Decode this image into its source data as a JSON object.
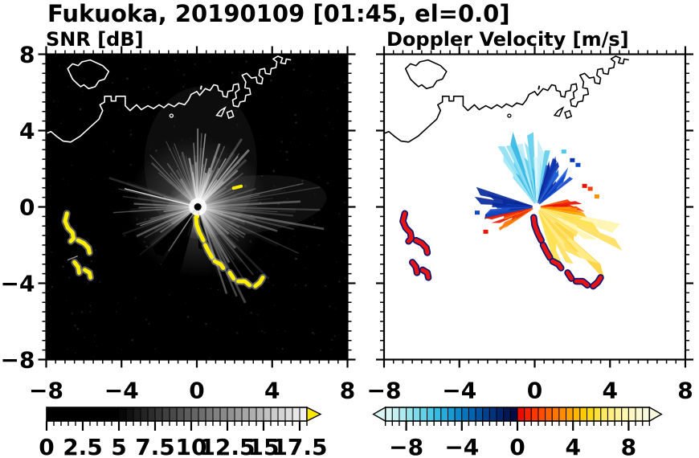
{
  "title": "Fukuoka, 20190109 [01:45, el=0.0]",
  "chart_data": [
    {
      "type": "heatmap",
      "title": "SNR [dB]",
      "xlim": [
        -8,
        8
      ],
      "ylim": [
        -8,
        8
      ],
      "xticks": [
        -8,
        -4,
        0,
        4,
        8
      ],
      "yticks": [
        8,
        4,
        0,
        -4,
        -8
      ],
      "xtick_labels": [
        "−8",
        "−4",
        "0",
        "4",
        "8"
      ],
      "ytick_labels": [
        "8",
        "4",
        "0",
        "−4",
        "−8"
      ],
      "minor_tick_step": 0.5,
      "grid": false,
      "background_color": "#000000",
      "coast_color": "#ffffff",
      "colorbar": {
        "range": [
          0,
          18
        ],
        "cell_step": 0.5,
        "tick_values": [
          0,
          2.5,
          5,
          7.5,
          10,
          12.5,
          15,
          17.5
        ],
        "tick_labels": [
          "0",
          "2.5",
          "5",
          "7.5",
          "10",
          "12.5",
          "15",
          "17.5"
        ],
        "minor_step": 0.5,
        "black_until": 5,
        "ramp_start": "#000000",
        "ramp_end": "#f0f0f0",
        "over_arrow_color": "#ffe800"
      },
      "radar": {
        "center": [
          0.05,
          0.0
        ],
        "streak_color": "#ffffff",
        "sectors": [
          {
            "a0": -50,
            "a1": -12,
            "n": 12,
            "l0": 1.5,
            "l1": 4.3,
            "o": 0.3
          },
          {
            "a0": -12,
            "a1": 50,
            "n": 26,
            "l0": 1.6,
            "l1": 4.4,
            "o": 0.5
          },
          {
            "a0": 52,
            "a1": 76,
            "n": 7,
            "l0": 1.8,
            "l1": 3.4,
            "o": 0.2
          },
          {
            "a0": 76,
            "a1": 112,
            "n": 15,
            "l0": 2.0,
            "l1": 6.8,
            "o": 0.3
          },
          {
            "a0": 112,
            "a1": 162,
            "n": 16,
            "l0": 1.8,
            "l1": 6.2,
            "o": 0.32
          },
          {
            "a0": 228,
            "a1": 292,
            "n": 16,
            "l0": 1.6,
            "l1": 5.0,
            "o": 0.3
          },
          {
            "a0": 181,
            "a1": 200,
            "n": 4,
            "l0": 0.8,
            "l1": 1.8,
            "o": 0.1
          }
        ],
        "extra_rays": [
          {
            "az": 284,
            "len": 4.0,
            "o": 0.85,
            "w": 1.3
          },
          {
            "az": 252,
            "len": 3.2,
            "o": 0.5,
            "w": 1.0
          },
          {
            "az": 213.5,
            "len": 2.8,
            "o": 0.4,
            "w": 1.0
          }
        ],
        "dark_wedges": [
          {
            "a0": 195,
            "a1": 212,
            "len": 4.0
          },
          {
            "a0": 215,
            "a1": 228,
            "len": 3.2
          },
          {
            "a0": 163,
            "a1": 179,
            "len": 2.2
          }
        ],
        "clutter_color": "#ffee00",
        "clutter_glow": "#c8c8c8",
        "yellow_dashes": [
          [
            [
              1.95,
              0.98
            ],
            [
              2.35,
              1.08
            ]
          ],
          [
            [
              -0.1,
              -0.35
            ],
            [
              0.05,
              -0.5
            ]
          ]
        ],
        "white_dashes": [
          [
            [
              -6.85,
              -2.78
            ],
            [
              -6.35,
              -2.58
            ]
          ]
        ]
      }
    },
    {
      "type": "heatmap",
      "title": "Doppler Velocity [m/s]",
      "xlim": [
        -8,
        8
      ],
      "ylim": [
        -8,
        8
      ],
      "xticks": [
        -8,
        -4,
        0,
        4,
        8
      ],
      "xtick_labels": [
        "−8",
        "−4",
        "0",
        "4",
        "8"
      ],
      "minor_tick_step": 0.5,
      "grid": false,
      "background_color": "#ffffff",
      "coast_color": "#000000",
      "colorbar": {
        "range": [
          -9.5,
          9.5
        ],
        "cell_step": 0.5,
        "tick_values": [
          -8,
          -4,
          0,
          4,
          8
        ],
        "tick_labels": [
          "−8",
          "−4",
          "0",
          "4",
          "8"
        ],
        "minor_step": 0.5,
        "cells_negative": [
          "#d9f6f4",
          "#c4f0f1",
          "#aeeaef",
          "#97e3ec",
          "#7edaea",
          "#65d1e7",
          "#4ec6e4",
          "#38bae0",
          "#27abda",
          "#189ad2",
          "#0e88c8",
          "#0675bc",
          "#0363ae",
          "#02529f",
          "#01418f",
          "#01327e",
          "#01246b",
          "#001757",
          "#000c45"
        ],
        "cells_positive": [
          "#ea0c00",
          "#f32200",
          "#fa3800",
          "#fe4d00",
          "#ff6200",
          "#ff7700",
          "#ff8c00",
          "#ffa100",
          "#ffb600",
          "#ffca00",
          "#ffd816",
          "#ffe13c",
          "#ffe862",
          "#ffee82",
          "#fff29c",
          "#fff6b2",
          "#fff8c4",
          "#fcf9d1",
          "#f8f8dc"
        ],
        "under_arrow_color": "#d9f6f4",
        "over_arrow_color": "#f8f8dc"
      },
      "radar": {
        "center": [
          0.1,
          0.0
        ],
        "fans": [
          {
            "a0": -38,
            "a1": 12,
            "n": 16,
            "l0": 1.6,
            "l1": 3.9,
            "colors": [
              "#bfeef8",
              "#8fdff2",
              "#5fceec",
              "#3ab9e4",
              "#a5e9f5",
              "#d8f6fb"
            ]
          },
          {
            "a0": 13,
            "a1": 52,
            "n": 13,
            "l0": 1.4,
            "l1": 2.9,
            "colors": [
              "#1248cc",
              "#0a32ac",
              "#0a2390",
              "#2060d8"
            ]
          },
          {
            "a0": 78,
            "a1": 103,
            "n": 10,
            "l0": 1.2,
            "l1": 2.4,
            "colors": [
              "#e81000",
              "#f54000",
              "#fd6a00"
            ]
          },
          {
            "a0": 92,
            "a1": 112,
            "n": 8,
            "l0": 1.8,
            "l1": 2.9,
            "colors": [
              "#ff9000",
              "#ffb000",
              "#ff7b00"
            ]
          },
          {
            "a0": 104,
            "a1": 160,
            "n": 18,
            "l0": 2.0,
            "l1": 4.6,
            "colors": [
              "#ffd23c",
              "#ffdf60",
              "#ffeb8a",
              "#fff4ae",
              "#ffe14e"
            ]
          },
          {
            "a0": 257,
            "a1": 287,
            "n": 10,
            "l0": 1.6,
            "l1": 3.1,
            "colors": [
              "#0a2a9c",
              "#1448c4",
              "#0a1d80"
            ]
          },
          {
            "a0": 236,
            "a1": 257,
            "n": 8,
            "l0": 1.4,
            "l1": 2.6,
            "colors": [
              "#ea1600",
              "#ff7a00",
              "#f03800"
            ]
          }
        ],
        "specks": [
          [
            2.65,
            1.1,
            "#e81400"
          ],
          [
            2.0,
            2.45,
            "#0a32ac"
          ],
          [
            1.55,
            2.9,
            "#4cc8ec"
          ],
          [
            -3.05,
            -0.3,
            "#1448c4"
          ],
          [
            3.3,
            0.55,
            "#ff9000"
          ],
          [
            2.95,
            0.95,
            "#f54000"
          ],
          [
            2.3,
            2.2,
            "#1248cc"
          ],
          [
            -2.6,
            -1.3,
            "#ea1600"
          ]
        ],
        "clutter_color": "#e81414",
        "clutter_edge": "#12176e"
      }
    }
  ],
  "map_features": {
    "coastline_main": [
      [
        -8,
        3.85
      ],
      [
        -7.75,
        3.95
      ],
      [
        -7.45,
        3.7
      ],
      [
        -7.1,
        3.45
      ],
      [
        -6.7,
        3.4
      ],
      [
        -6.2,
        3.7
      ],
      [
        -5.65,
        4.2
      ],
      [
        -5.2,
        4.6
      ],
      [
        -5.0,
        5.05
      ],
      [
        -5.15,
        5.35
      ],
      [
        -4.9,
        5.5
      ],
      [
        -4.9,
        5.8
      ],
      [
        -4.55,
        5.8
      ],
      [
        -4.55,
        5.55
      ],
      [
        -4.3,
        5.55
      ],
      [
        -4.3,
        5.8
      ],
      [
        -3.8,
        5.8
      ],
      [
        -3.8,
        5.3
      ],
      [
        -3.55,
        5.05
      ],
      [
        -3.2,
        5.35
      ],
      [
        -2.95,
        5.1
      ],
      [
        -2.6,
        5.3
      ],
      [
        -2.3,
        5.15
      ],
      [
        -2.0,
        5.35
      ],
      [
        -1.75,
        5.2
      ],
      [
        -1.5,
        5.4
      ],
      [
        -1.2,
        5.25
      ],
      [
        -0.95,
        5.45
      ],
      [
        -0.65,
        5.35
      ],
      [
        -0.45,
        5.6
      ],
      [
        -0.3,
        5.9
      ],
      [
        0.0,
        6.05
      ],
      [
        0.15,
        5.85
      ],
      [
        0.45,
        6.2
      ],
      [
        0.7,
        6.1
      ],
      [
        0.9,
        6.4
      ],
      [
        1.1,
        6.35
      ],
      [
        1.15,
        6.1
      ],
      [
        1.35,
        6.05
      ],
      [
        1.4,
        5.8
      ],
      [
        1.6,
        5.75
      ],
      [
        1.65,
        6.05
      ],
      [
        1.9,
        6.1
      ],
      [
        1.95,
        6.4
      ],
      [
        2.2,
        6.45
      ],
      [
        2.25,
        6.15
      ],
      [
        2.05,
        6.0
      ],
      [
        2.1,
        5.7
      ],
      [
        1.9,
        5.6
      ],
      [
        1.95,
        5.3
      ],
      [
        2.2,
        5.25
      ],
      [
        2.3,
        5.5
      ],
      [
        2.55,
        5.55
      ],
      [
        2.6,
        5.85
      ],
      [
        2.85,
        5.9
      ],
      [
        2.8,
        6.2
      ],
      [
        2.55,
        6.25
      ],
      [
        2.6,
        6.55
      ],
      [
        2.4,
        6.9
      ],
      [
        2.65,
        7.0
      ],
      [
        2.9,
        6.75
      ],
      [
        3.15,
        6.8
      ],
      [
        3.2,
        6.5
      ],
      [
        3.45,
        6.45
      ],
      [
        3.5,
        6.75
      ],
      [
        3.3,
        6.9
      ],
      [
        3.35,
        7.2
      ],
      [
        3.6,
        7.25
      ],
      [
        3.65,
        7.0
      ],
      [
        3.9,
        6.95
      ],
      [
        3.95,
        7.25
      ],
      [
        4.2,
        7.3
      ],
      [
        4.25,
        7.6
      ],
      [
        4.05,
        7.75
      ],
      [
        4.3,
        7.9
      ],
      [
        4.55,
        7.8
      ],
      [
        4.45,
        7.55
      ],
      [
        4.7,
        7.5
      ],
      [
        4.75,
        7.75
      ],
      [
        5.0,
        7.7
      ]
    ],
    "island": [
      [
        -6.7,
        6.9
      ],
      [
        -6.86,
        7.24
      ],
      [
        -6.6,
        7.5
      ],
      [
        -6.3,
        7.4
      ],
      [
        -6.1,
        7.6
      ],
      [
        -5.66,
        7.7
      ],
      [
        -5.0,
        7.4
      ],
      [
        -4.68,
        7.1
      ],
      [
        -4.9,
        6.7
      ],
      [
        -5.2,
        6.6
      ],
      [
        -5.4,
        6.3
      ],
      [
        -5.75,
        6.2
      ],
      [
        -6.0,
        6.4
      ],
      [
        -6.17,
        6.3
      ],
      [
        -6.4,
        6.5
      ],
      [
        -6.6,
        6.7
      ]
    ],
    "piers": [
      [
        [
          1.25,
          5.05
        ],
        [
          1.5,
          5.2
        ],
        [
          1.3,
          4.75
        ],
        [
          1.05,
          4.8
        ]
      ],
      [
        [
          1.6,
          4.95
        ],
        [
          1.85,
          5.05
        ],
        [
          1.95,
          4.75
        ],
        [
          1.7,
          4.65
        ]
      ]
    ],
    "marks": {
      "dot": [
        -1.35,
        4.78
      ],
      "apostrophe": [
        [
          0.2,
          6.15
        ],
        [
          0.25,
          6.35
        ]
      ]
    },
    "clutter_arcs": [
      [
        [
          -0.05,
          -0.55
        ],
        [
          0.0,
          -0.95
        ],
        [
          0.15,
          -1.35
        ],
        [
          0.35,
          -1.75
        ]
      ],
      [
        [
          0.45,
          -2.0
        ],
        [
          0.6,
          -2.3
        ],
        [
          0.8,
          -2.65
        ]
      ],
      [
        [
          0.95,
          -2.85
        ],
        [
          1.25,
          -3.0
        ],
        [
          1.4,
          -3.2
        ]
      ],
      [
        [
          1.75,
          -3.45
        ],
        [
          1.95,
          -3.75
        ]
      ],
      [
        [
          2.2,
          -3.9
        ],
        [
          2.55,
          -3.9
        ],
        [
          2.8,
          -4.1
        ]
      ],
      [
        [
          3.1,
          -4.15
        ],
        [
          3.35,
          -3.95
        ],
        [
          3.5,
          -3.7
        ]
      ],
      [
        [
          -6.9,
          -0.35
        ],
        [
          -7.0,
          -0.75
        ],
        [
          -6.85,
          -1.1
        ],
        [
          -6.6,
          -1.35
        ],
        [
          -6.55,
          -1.65
        ],
        [
          -6.7,
          -1.8
        ]
      ],
      [
        [
          -6.3,
          -1.75
        ],
        [
          -6.0,
          -1.9
        ],
        [
          -5.75,
          -2.15
        ],
        [
          -5.7,
          -2.4
        ]
      ],
      [
        [
          -6.5,
          -2.9
        ],
        [
          -6.3,
          -3.15
        ],
        [
          -6.25,
          -3.45
        ]
      ],
      [
        [
          -5.95,
          -3.3
        ],
        [
          -5.7,
          -3.45
        ],
        [
          -5.65,
          -3.7
        ]
      ]
    ]
  }
}
